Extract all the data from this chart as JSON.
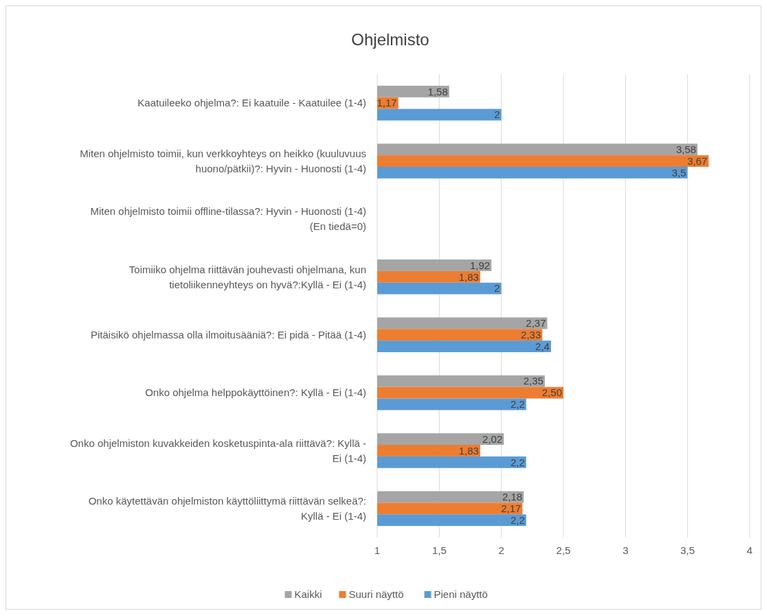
{
  "chart_data": {
    "type": "bar",
    "orientation": "horizontal",
    "title": "Ohjelmisto",
    "categories": [
      "Kaatuileeko ohjelma?: Ei kaatuile - Kaatuilee (1-4)",
      "Miten ohjelmisto toimii, kun verkkoyhteys on heikko (kuuluvuus huono/pätkii)?: Hyvin - Huonosti (1-4)",
      "Miten ohjelmisto toimii offline-tilassa?: Hyvin - Huonosti (1-4) (En tiedä=0)",
      "Toimiiko ohjelma riittävän jouhevasti ohjelmana, kun tietoliikenneyhteys on hyvä?:Kyllä - Ei (1-4)",
      "Pitäisikö ohjelmassa olla ilmoitusääniä?: Ei pidä - Pitää (1-4)",
      "Onko ohjelma helppokäyttöinen?: Kyllä - Ei (1-4)",
      "Onko ohjelmiston kuvakkeiden kosketuspinta-ala riittävä?: Kyllä - Ei (1-4)",
      "Onko käytettävän ohjelmiston käyttöliittymä riittävän selkeä?: Kyllä - Ei (1-4)"
    ],
    "series": [
      {
        "name": "Kaikki",
        "color": "#a5a5a5",
        "values": [
          1.58,
          3.58,
          null,
          1.92,
          2.37,
          2.35,
          2.02,
          2.18
        ],
        "value_labels": [
          "1,58",
          "3,58",
          null,
          "1,92",
          "2,37",
          "2,35",
          "2,02",
          "2,18"
        ]
      },
      {
        "name": "Suuri näyttö",
        "color": "#ed7d31",
        "values": [
          1.17,
          3.67,
          null,
          1.83,
          2.33,
          2.5,
          1.83,
          2.17
        ],
        "value_labels": [
          "1,17",
          "3,67",
          null,
          "1,83",
          "2,33",
          "2,50",
          "1,83",
          "2,17"
        ]
      },
      {
        "name": "Pieni näyttö",
        "color": "#5b9bd5",
        "values": [
          2,
          3.5,
          null,
          2,
          2.4,
          2.2,
          2.2,
          2.2
        ],
        "value_labels": [
          "2",
          "3,5",
          null,
          "2",
          "2,4",
          "2,2",
          "2,2",
          "2,2"
        ]
      }
    ],
    "xlim": [
      1,
      4
    ],
    "xticks": [
      1,
      {
        "value": 1.5,
        "label": "1,5"
      },
      2,
      {
        "value": 2.5,
        "label": "2,5"
      },
      3,
      {
        "value": 3.5,
        "label": "3,5"
      },
      4
    ],
    "grid": "x",
    "legend": "bottom"
  }
}
